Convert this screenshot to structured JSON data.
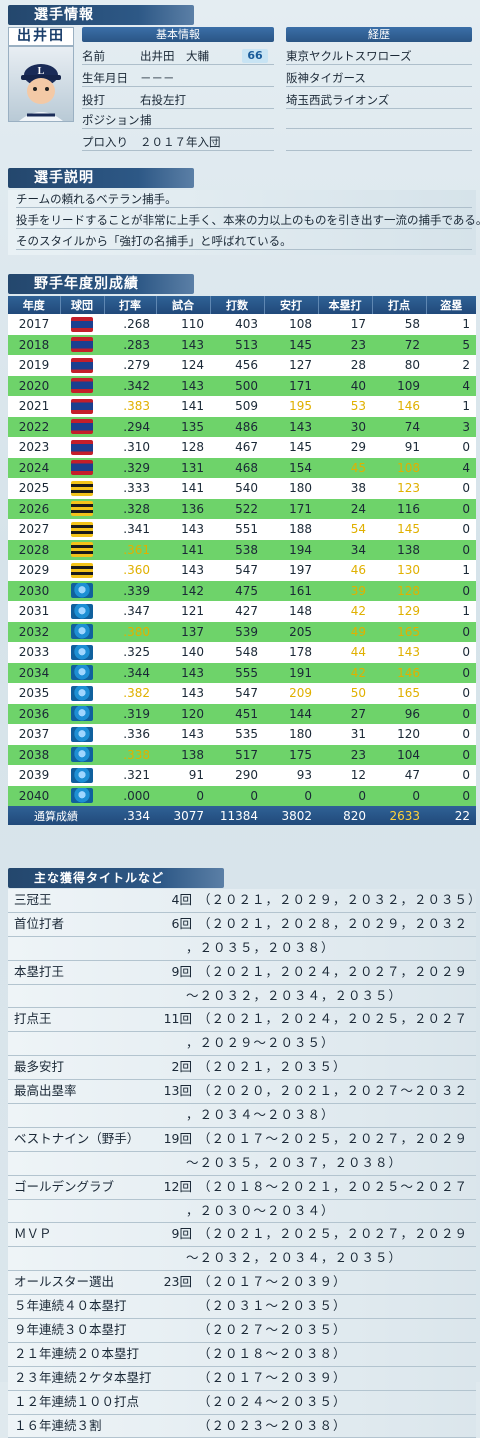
{
  "player_header": "選手情報",
  "player": {
    "name": "出井田",
    "basic_info_label": "基本情報",
    "career_label": "経歴",
    "rating": "66",
    "fields": [
      {
        "label": "名前",
        "value": "出井田　大輔"
      },
      {
        "label": "生年月日",
        "value": "－－－"
      },
      {
        "label": "投打",
        "value": "右投左打"
      },
      {
        "label": "ポジション",
        "value": "捕"
      },
      {
        "label": "プロ入り",
        "value": "２０１７年入団"
      }
    ],
    "career": [
      "東京ヤクルトスワローズ",
      "阪神タイガース",
      "埼玉西武ライオンズ"
    ]
  },
  "description": {
    "header": "選手説明",
    "lines": [
      "チームの頼れるベテラン捕手。",
      "投手をリードすることが非常に上手く、本来の力以上のものを引き出す一流の捕手である。",
      "そのスタイルから「強打の名捕手」と呼ばれている。"
    ]
  },
  "stats": {
    "header": "野手年度別成績",
    "columns": [
      "年度",
      "球団",
      "打率",
      "試合",
      "打数",
      "安打",
      "本塁打",
      "打点",
      "盗塁"
    ],
    "team_logos": {
      "S": "swallows-logo",
      "T": "tigers-logo",
      "L": "lions-logo"
    },
    "rows": [
      {
        "year": "2017",
        "team": "S",
        "avg": ".268",
        "g": "110",
        "ab": "403",
        "h": "108",
        "hr": "17",
        "rbi": "58",
        "sb": "1",
        "hi": []
      },
      {
        "year": "2018",
        "team": "S",
        "avg": ".283",
        "g": "143",
        "ab": "513",
        "h": "145",
        "hr": "23",
        "rbi": "72",
        "sb": "5",
        "hi": []
      },
      {
        "year": "2019",
        "team": "S",
        "avg": ".279",
        "g": "124",
        "ab": "456",
        "h": "127",
        "hr": "28",
        "rbi": "80",
        "sb": "2",
        "hi": []
      },
      {
        "year": "2020",
        "team": "S",
        "avg": ".342",
        "g": "143",
        "ab": "500",
        "h": "171",
        "hr": "40",
        "rbi": "109",
        "sb": "4",
        "hi": []
      },
      {
        "year": "2021",
        "team": "S",
        "avg": ".383",
        "g": "141",
        "ab": "509",
        "h": "195",
        "hr": "53",
        "rbi": "146",
        "sb": "1",
        "hi": [
          "avg",
          "h",
          "hr",
          "rbi"
        ]
      },
      {
        "year": "2022",
        "team": "S",
        "avg": ".294",
        "g": "135",
        "ab": "486",
        "h": "143",
        "hr": "30",
        "rbi": "74",
        "sb": "3",
        "hi": []
      },
      {
        "year": "2023",
        "team": "S",
        "avg": ".310",
        "g": "128",
        "ab": "467",
        "h": "145",
        "hr": "29",
        "rbi": "91",
        "sb": "0",
        "hi": []
      },
      {
        "year": "2024",
        "team": "S",
        "avg": ".329",
        "g": "131",
        "ab": "468",
        "h": "154",
        "hr": "45",
        "rbi": "108",
        "sb": "4",
        "hi": [
          "hr",
          "rbi"
        ]
      },
      {
        "year": "2025",
        "team": "T",
        "avg": ".333",
        "g": "141",
        "ab": "540",
        "h": "180",
        "hr": "38",
        "rbi": "123",
        "sb": "0",
        "hi": [
          "rbi"
        ]
      },
      {
        "year": "2026",
        "team": "T",
        "avg": ".328",
        "g": "136",
        "ab": "522",
        "h": "171",
        "hr": "24",
        "rbi": "116",
        "sb": "0",
        "hi": []
      },
      {
        "year": "2027",
        "team": "T",
        "avg": ".341",
        "g": "143",
        "ab": "551",
        "h": "188",
        "hr": "54",
        "rbi": "145",
        "sb": "0",
        "hi": [
          "hr",
          "rbi"
        ]
      },
      {
        "year": "2028",
        "team": "T",
        "avg": ".361",
        "g": "141",
        "ab": "538",
        "h": "194",
        "hr": "34",
        "rbi": "138",
        "sb": "0",
        "hi": [
          "avg"
        ]
      },
      {
        "year": "2029",
        "team": "T",
        "avg": ".360",
        "g": "143",
        "ab": "547",
        "h": "197",
        "hr": "46",
        "rbi": "130",
        "sb": "1",
        "hi": [
          "avg",
          "hr",
          "rbi"
        ]
      },
      {
        "year": "2030",
        "team": "L",
        "avg": ".339",
        "g": "142",
        "ab": "475",
        "h": "161",
        "hr": "39",
        "rbi": "128",
        "sb": "0",
        "hi": [
          "hr",
          "rbi"
        ]
      },
      {
        "year": "2031",
        "team": "L",
        "avg": ".347",
        "g": "121",
        "ab": "427",
        "h": "148",
        "hr": "42",
        "rbi": "129",
        "sb": "1",
        "hi": [
          "hr",
          "rbi"
        ]
      },
      {
        "year": "2032",
        "team": "L",
        "avg": ".380",
        "g": "137",
        "ab": "539",
        "h": "205",
        "hr": "49",
        "rbi": "165",
        "sb": "0",
        "hi": [
          "avg",
          "hr",
          "rbi"
        ]
      },
      {
        "year": "2033",
        "team": "L",
        "avg": ".325",
        "g": "140",
        "ab": "548",
        "h": "178",
        "hr": "44",
        "rbi": "143",
        "sb": "0",
        "hi": [
          "hr",
          "rbi"
        ]
      },
      {
        "year": "2034",
        "team": "L",
        "avg": ".344",
        "g": "143",
        "ab": "555",
        "h": "191",
        "hr": "42",
        "rbi": "146",
        "sb": "0",
        "hi": [
          "hr",
          "rbi"
        ]
      },
      {
        "year": "2035",
        "team": "L",
        "avg": ".382",
        "g": "143",
        "ab": "547",
        "h": "209",
        "hr": "50",
        "rbi": "165",
        "sb": "0",
        "hi": [
          "avg",
          "h",
          "hr",
          "rbi"
        ]
      },
      {
        "year": "2036",
        "team": "L",
        "avg": ".319",
        "g": "120",
        "ab": "451",
        "h": "144",
        "hr": "27",
        "rbi": "96",
        "sb": "0",
        "hi": []
      },
      {
        "year": "2037",
        "team": "L",
        "avg": ".336",
        "g": "143",
        "ab": "535",
        "h": "180",
        "hr": "31",
        "rbi": "120",
        "sb": "0",
        "hi": []
      },
      {
        "year": "2038",
        "team": "L",
        "avg": ".338",
        "g": "138",
        "ab": "517",
        "h": "175",
        "hr": "23",
        "rbi": "104",
        "sb": "0",
        "hi": [
          "avg"
        ]
      },
      {
        "year": "2039",
        "team": "L",
        "avg": ".321",
        "g": "91",
        "ab": "290",
        "h": "93",
        "hr": "12",
        "rbi": "47",
        "sb": "0",
        "hi": []
      },
      {
        "year": "2040",
        "team": "L",
        "avg": ".000",
        "g": "0",
        "ab": "0",
        "h": "0",
        "hr": "0",
        "rbi": "0",
        "sb": "0",
        "hi": []
      }
    ],
    "totals": {
      "label": "通算成績",
      "avg": ".334",
      "g": "3077",
      "ab": "11384",
      "h": "3802",
      "hr": "820",
      "rbi": "2633",
      "sb": "22",
      "hi": [
        "rbi"
      ]
    }
  },
  "titles": {
    "header": "主な獲得タイトルなど",
    "items": [
      {
        "name": "三冠王",
        "count": "4回",
        "years": [
          "（２０２１，２０２９，２０３２，２０３５）"
        ]
      },
      {
        "name": "首位打者",
        "count": "6回",
        "years": [
          "（２０２１，２０２８，２０２９，２０３２",
          "，２０３５，２０３８）"
        ]
      },
      {
        "name": "本塁打王",
        "count": "9回",
        "years": [
          "（２０２１，２０２４，２０２７，２０２９",
          "～２０３２，２０３４，２０３５）"
        ]
      },
      {
        "name": "打点王",
        "count": "11回",
        "years": [
          "（２０２１，２０２４，２０２５，２０２７",
          "，２０２９～２０３５）"
        ]
      },
      {
        "name": "最多安打",
        "count": "2回",
        "years": [
          "（２０２１，２０３５）"
        ]
      },
      {
        "name": "最高出塁率",
        "count": "13回",
        "years": [
          "（２０２０，２０２１，２０２７～２０３２",
          "，２０３４～２０３８）"
        ]
      },
      {
        "name": "ベストナイン（野手）",
        "count": "19回",
        "years": [
          "（２０１７～２０２５，２０２７，２０２９",
          "～２０３５，２０３７，２０３８）"
        ]
      },
      {
        "name": "ゴールデングラブ",
        "count": "12回",
        "years": [
          "（２０１８～２０２１，２０２５～２０２７",
          "，２０３０～２０３４）"
        ]
      },
      {
        "name": "ＭＶＰ",
        "count": "9回",
        "years": [
          "（２０２１，２０２５，２０２７，２０２９",
          "～２０３２，２０３４，２０３５）"
        ]
      },
      {
        "name": "オールスター選出",
        "count": "23回",
        "years": [
          "（２０１７～２０３９）"
        ]
      },
      {
        "name": "５年連続４０本塁打",
        "count": "",
        "years": [
          "（２０３１～２０３５）"
        ]
      },
      {
        "name": "９年連続３０本塁打",
        "count": "",
        "years": [
          "（２０２７～２０３５）"
        ]
      },
      {
        "name": "２１年連続２０本塁打",
        "count": "",
        "years": [
          "（２０１８～２０３８）"
        ]
      },
      {
        "name": "２３年連続２ケタ本塁打",
        "count": "",
        "years": [
          "（２０１７～２０３９）"
        ]
      },
      {
        "name": "１２年連続１００打点",
        "count": "",
        "years": [
          "（２０２４～２０３５）"
        ]
      },
      {
        "name": "１６年連続３割",
        "count": "",
        "years": [
          "（２０２３～２０３８）"
        ]
      }
    ]
  }
}
